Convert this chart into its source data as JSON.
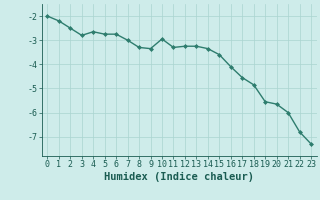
{
  "x": [
    0,
    1,
    2,
    3,
    4,
    5,
    6,
    7,
    8,
    9,
    10,
    11,
    12,
    13,
    14,
    15,
    16,
    17,
    18,
    19,
    20,
    21,
    22,
    23
  ],
  "y": [
    -2.0,
    -2.2,
    -2.5,
    -2.8,
    -2.65,
    -2.75,
    -2.75,
    -3.0,
    -3.3,
    -3.35,
    -2.95,
    -3.3,
    -3.25,
    -3.25,
    -3.35,
    -3.6,
    -4.1,
    -4.55,
    -4.85,
    -5.55,
    -5.65,
    -6.0,
    -6.8,
    -7.3
  ],
  "line_color": "#2e7d6e",
  "marker": "d",
  "marker_size": 2.0,
  "bg_color": "#ceecea",
  "grid_color": "#aad4d0",
  "xlabel": "Humidex (Indice chaleur)",
  "xlim": [
    -0.5,
    23.5
  ],
  "ylim": [
    -7.8,
    -1.5
  ],
  "yticks": [
    -2,
    -3,
    -4,
    -5,
    -6,
    -7
  ],
  "xticks": [
    0,
    1,
    2,
    3,
    4,
    5,
    6,
    7,
    8,
    9,
    10,
    11,
    12,
    13,
    14,
    15,
    16,
    17,
    18,
    19,
    20,
    21,
    22,
    23
  ],
  "tick_fontsize": 6.0,
  "xlabel_fontsize": 7.5,
  "line_width": 1.0,
  "text_color": "#1a5c52"
}
